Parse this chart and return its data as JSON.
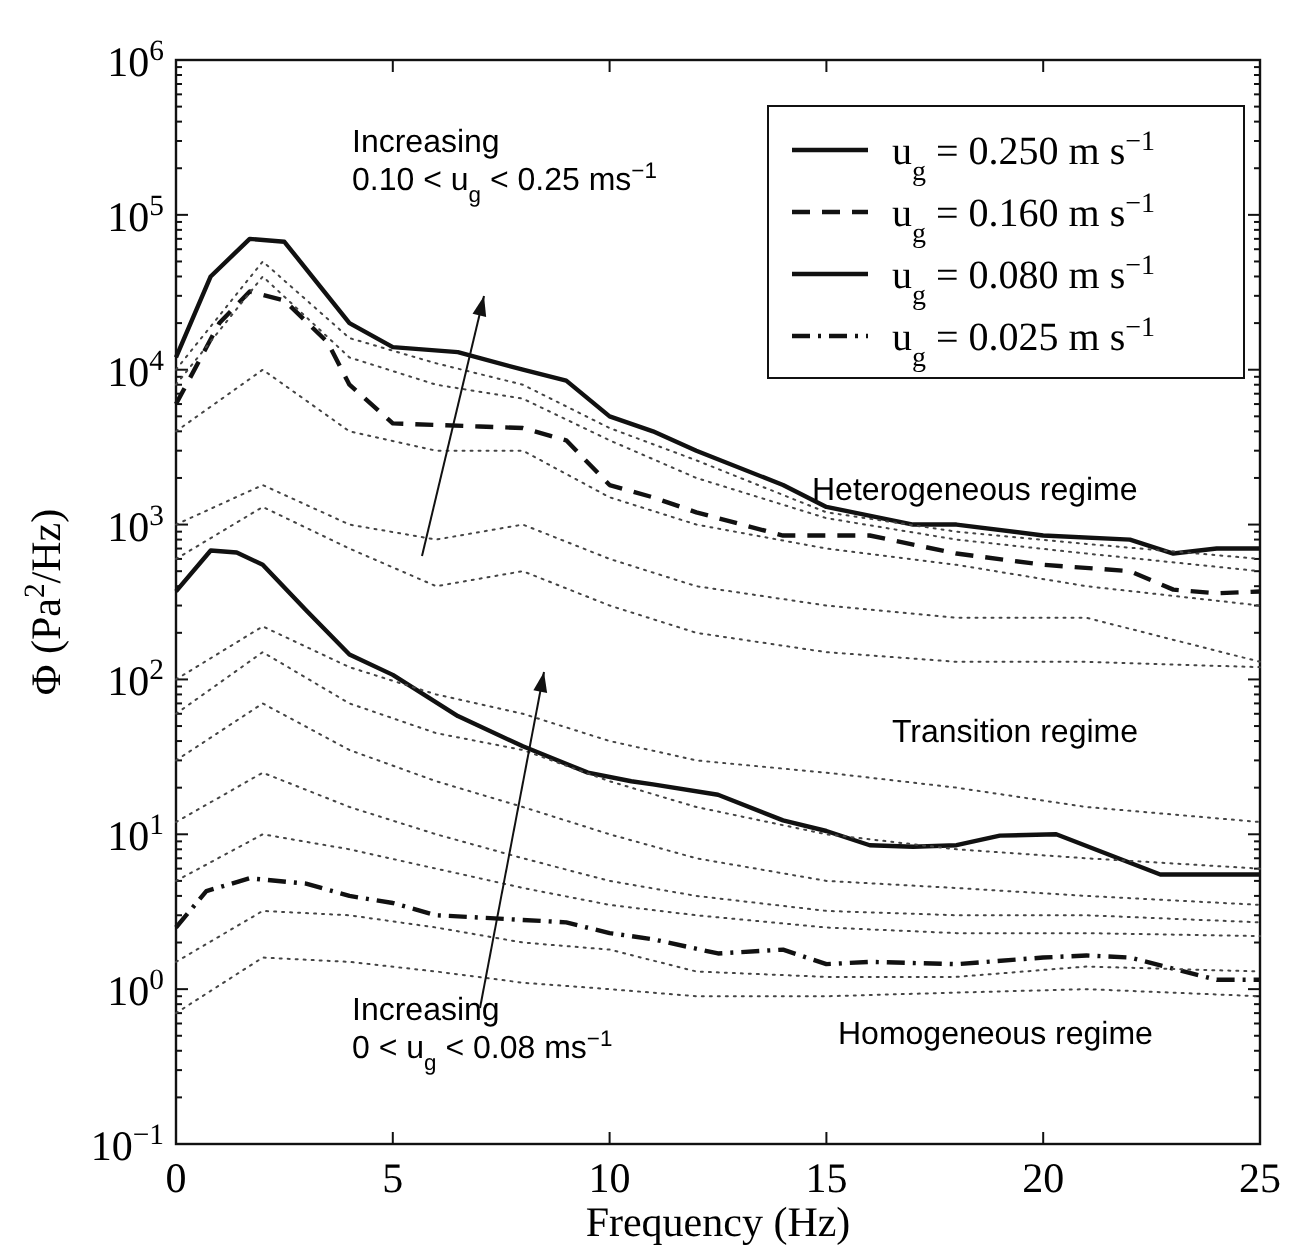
{
  "chart_data": {
    "type": "line",
    "xlabel": "Frequency (Hz)",
    "ylabel": "Φ (Pa$^{2}$/Hz)",
    "log": "y",
    "xlim": [
      0,
      25
    ],
    "ylim": [
      0.1,
      1000000
    ],
    "xticks": [
      0,
      5,
      10,
      15,
      20,
      25
    ],
    "yticks": [
      {
        "value": 0.1,
        "label": "10$^{−1}$"
      },
      {
        "value": 1,
        "label": "10$^{0}$"
      },
      {
        "value": 10,
        "label": "10$^{1}$"
      },
      {
        "value": 100,
        "label": "10$^{2}$"
      },
      {
        "value": 1000,
        "label": "10$^{3}$"
      },
      {
        "value": 10000,
        "label": "10$^{4}$"
      },
      {
        "value": 100000,
        "label": "10$^{5}$"
      },
      {
        "value": 1000000,
        "label": "10$^{6}$"
      }
    ],
    "legend": "top right",
    "grid": false,
    "series": [
      {
        "name": "u$_{g}$ = 0.250 m s$^{−1}$",
        "color": "#111111",
        "line_style": "solid",
        "x": [
          0,
          0.8,
          1.7,
          2.5,
          4,
          5,
          6.5,
          8,
          9,
          10,
          11,
          12,
          14,
          15,
          17,
          18,
          20,
          22,
          23,
          24,
          25
        ],
        "values": [
          12000,
          40000,
          70000,
          67000,
          20000,
          14000,
          13000,
          10000,
          8500,
          5000,
          4000,
          3000,
          1800,
          1300,
          1000,
          1000,
          850,
          800,
          650,
          700,
          700
        ]
      },
      {
        "name": "u$_{g}$ = 0.160 m s$^{−1}$",
        "color": "#111111",
        "line_style": "dashed",
        "x": [
          0,
          1,
          1.7,
          2.5,
          3.5,
          4,
          5,
          7,
          8,
          9,
          10,
          11,
          12,
          14,
          16,
          18,
          20,
          22,
          23,
          24,
          25
        ],
        "values": [
          6000,
          20000,
          32000,
          28000,
          15000,
          8000,
          4500,
          4300,
          4200,
          3500,
          1800,
          1500,
          1200,
          850,
          850,
          650,
          550,
          500,
          380,
          360,
          370
        ]
      },
      {
        "name": "u$_{g}$ = 0.080 m s$^{−1}$",
        "color": "#111111",
        "line_style": "solid",
        "x": [
          0,
          0.8,
          1.4,
          2,
          3,
          4,
          5,
          6.5,
          8,
          9.5,
          10.5,
          11,
          12.5,
          14,
          15,
          16,
          17,
          18,
          19,
          20.3,
          22.7,
          25
        ],
        "values": [
          370,
          680,
          660,
          550,
          280,
          145,
          107,
          58,
          37,
          25,
          22,
          21,
          18,
          12.3,
          10.5,
          8.5,
          8.3,
          8.5,
          9.8,
          10,
          5.5,
          5.5
        ]
      },
      {
        "name": "u$_{g}$ = 0.025 m s$^{−1}$",
        "color": "#111111",
        "line_style": "dashdot",
        "x": [
          0,
          0.7,
          1.7,
          3,
          4,
          5,
          6,
          7,
          9,
          10,
          11,
          12.5,
          14,
          15,
          16,
          18,
          20,
          21,
          22,
          24,
          25
        ],
        "values": [
          2.5,
          4.3,
          5.2,
          4.8,
          4,
          3.6,
          3,
          2.9,
          2.7,
          2.3,
          2.1,
          1.7,
          1.8,
          1.45,
          1.5,
          1.45,
          1.6,
          1.65,
          1.6,
          1.15,
          1.15
        ]
      },
      {
        "color": "#444444",
        "line_style": "dotted",
        "x": [
          0,
          2,
          4,
          6,
          8,
          10,
          12,
          15,
          18,
          21,
          25
        ],
        "values": [
          10000,
          50000,
          16000,
          11000,
          8000,
          4200,
          2600,
          1200,
          900,
          750,
          600
        ]
      },
      {
        "color": "#444444",
        "line_style": "dotted",
        "x": [
          0,
          2,
          4,
          6,
          8,
          10,
          12,
          15,
          18,
          21,
          25
        ],
        "values": [
          8000,
          40000,
          12000,
          8000,
          6500,
          3500,
          2000,
          1100,
          800,
          650,
          500
        ]
      },
      {
        "color": "#444444",
        "line_style": "dotted",
        "x": [
          0,
          2,
          4,
          6,
          8,
          10,
          12,
          15,
          18,
          21,
          25
        ],
        "values": [
          4000,
          10000,
          4000,
          3000,
          3000,
          1500,
          1000,
          700,
          550,
          400,
          300
        ]
      },
      {
        "color": "#444444",
        "line_style": "dotted",
        "x": [
          0,
          2,
          4,
          6,
          8,
          10,
          12,
          15,
          18,
          21,
          25
        ],
        "values": [
          1000,
          1800,
          1000,
          800,
          1000,
          600,
          400,
          300,
          250,
          250,
          130
        ]
      },
      {
        "color": "#444444",
        "line_style": "dotted",
        "x": [
          0,
          2,
          4,
          6,
          8,
          10,
          12,
          15,
          18,
          21,
          25
        ],
        "values": [
          600,
          1300,
          700,
          400,
          500,
          300,
          200,
          150,
          130,
          130,
          120
        ]
      },
      {
        "color": "#444444",
        "line_style": "dotted",
        "x": [
          0,
          2,
          4,
          6,
          8,
          10,
          12,
          15,
          18,
          21,
          25
        ],
        "values": [
          100,
          220,
          120,
          80,
          60,
          40,
          30,
          25,
          20,
          15,
          12
        ]
      },
      {
        "color": "#444444",
        "line_style": "dotted",
        "x": [
          0,
          2,
          4,
          6,
          8,
          10,
          12,
          15,
          18,
          21,
          25
        ],
        "values": [
          60,
          150,
          70,
          45,
          35,
          22,
          15,
          10,
          8,
          7,
          6
        ]
      },
      {
        "color": "#444444",
        "line_style": "dotted",
        "x": [
          0,
          2,
          4,
          6,
          8,
          10,
          12,
          15,
          18,
          21,
          25
        ],
        "values": [
          30,
          70,
          35,
          22,
          15,
          10,
          7,
          5,
          4.5,
          4,
          3.5
        ]
      },
      {
        "color": "#444444",
        "line_style": "dotted",
        "x": [
          0,
          2,
          4,
          6,
          8,
          10,
          12,
          15,
          18,
          21,
          25
        ],
        "values": [
          12,
          25,
          15,
          10,
          7,
          5,
          4,
          3.2,
          3,
          3,
          2.7
        ]
      },
      {
        "color": "#444444",
        "line_style": "dotted",
        "x": [
          0,
          2,
          4,
          6,
          8,
          10,
          12,
          15,
          18,
          21,
          25
        ],
        "values": [
          5,
          10,
          8,
          6,
          4.5,
          3.5,
          3,
          2.5,
          2.3,
          2.3,
          2.2
        ]
      },
      {
        "color": "#444444",
        "line_style": "dotted",
        "x": [
          0,
          2,
          4,
          6,
          8,
          10,
          12,
          15,
          18,
          21,
          25
        ],
        "values": [
          1.5,
          3.2,
          3,
          2.5,
          2,
          1.8,
          1.3,
          1.2,
          1.2,
          1.4,
          1.3
        ]
      },
      {
        "color": "#444444",
        "line_style": "dotted",
        "x": [
          0,
          2,
          4,
          6,
          8,
          10,
          12,
          15,
          18,
          21,
          25
        ],
        "values": [
          0.7,
          1.6,
          1.5,
          1.3,
          1.1,
          1,
          0.9,
          0.9,
          0.95,
          1,
          0.9
        ]
      }
    ],
    "annotations": [
      "Increasing\n0.10 < u$_{g}$ < 0.25 ms$^{−1}$",
      "Heterogeneous regime",
      "Transition regime",
      "Increasing\n0 < u$_{g}$ < 0.08 ms$^{−1}$",
      "Homogeneous regime"
    ]
  }
}
